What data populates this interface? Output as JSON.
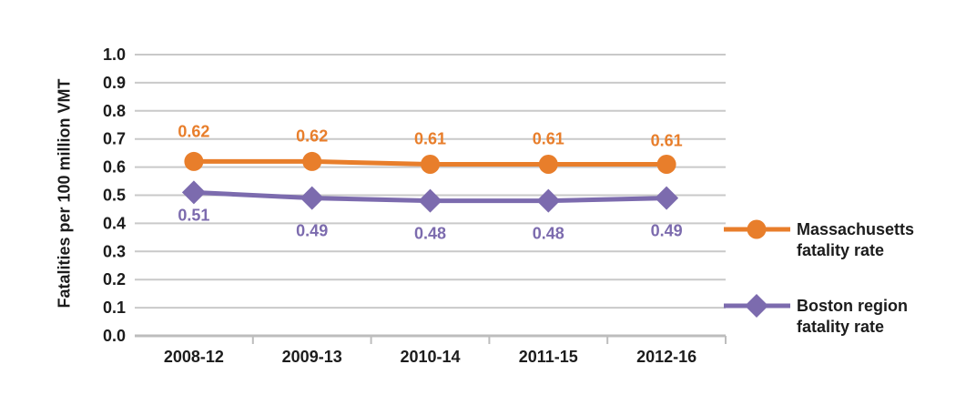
{
  "chart_data": {
    "type": "line",
    "title": "",
    "xlabel": "",
    "ylabel": "Fatalities per 100 million VMT",
    "ylim": [
      0.0,
      1.0
    ],
    "ytick_step": 0.1,
    "ytick_labels": [
      "0.0",
      "0.1",
      "0.2",
      "0.3",
      "0.4",
      "0.5",
      "0.6",
      "0.7",
      "0.8",
      "0.9",
      "1.0"
    ],
    "grid": "horizontal",
    "legend_position": "right",
    "categories": [
      "2008-12",
      "2009-13",
      "2010-14",
      "2011-15",
      "2012-16"
    ],
    "series": [
      {
        "name": "Massachusetts fatality rate",
        "legend_label": "Massachusetts\nfatality rate",
        "marker": "circle",
        "color": "#E87E2B",
        "values": [
          0.62,
          0.62,
          0.61,
          0.61,
          0.61
        ],
        "labels": [
          "0.62",
          "0.62",
          "0.61",
          "0.61",
          "0.61"
        ]
      },
      {
        "name": "Boston region fatality rate",
        "legend_label": "Boston region\nfatality rate",
        "marker": "diamond",
        "color": "#7C6BAE",
        "values": [
          0.51,
          0.49,
          0.48,
          0.48,
          0.49
        ],
        "labels": [
          "0.51",
          "0.49",
          "0.48",
          "0.48",
          "0.49"
        ]
      }
    ],
    "colors": {
      "gridline": "#C9C9C9",
      "axis": "#BDBDBD",
      "text": "#1C1C1C"
    }
  }
}
